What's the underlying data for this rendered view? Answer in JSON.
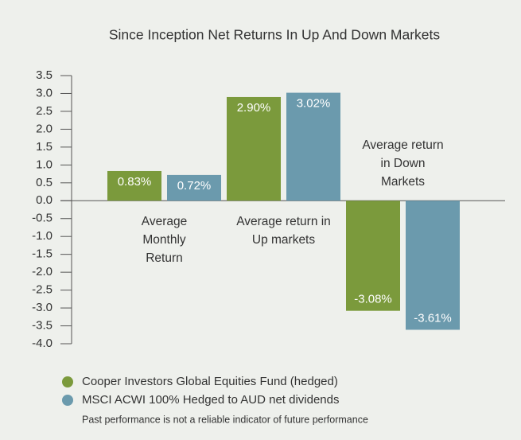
{
  "chart_data": {
    "type": "bar",
    "title": "Since Inception Net Returns In Up And Down Markets",
    "categories": [
      "Average Monthly Return",
      "Average return in Up markets",
      "Average return in Down Markets"
    ],
    "series": [
      {
        "name": "Cooper Investors Global Equities Fund (hedged)",
        "color": "#7b9a3c",
        "values": [
          0.83,
          2.9,
          -3.08
        ],
        "value_labels": [
          "0.83%",
          "2.90%",
          "-3.08%"
        ]
      },
      {
        "name": "MSCI ACWI 100% Hedged to AUD net dividends",
        "color": "#6b9aad",
        "values": [
          0.72,
          3.02,
          -3.61
        ],
        "value_labels": [
          "0.72%",
          "3.02%",
          "-3.61%"
        ]
      }
    ],
    "ylim": [
      -4.0,
      3.5
    ],
    "yticks": [
      {
        "value": 3.5,
        "label": "3.5"
      },
      {
        "value": 3.0,
        "label": "3.0"
      },
      {
        "value": 2.5,
        "label": "2.5"
      },
      {
        "value": 2.0,
        "label": "2.0"
      },
      {
        "value": 1.5,
        "label": "1.5"
      },
      {
        "value": 1.0,
        "label": "1.0"
      },
      {
        "value": 0.5,
        "label": "0.5"
      },
      {
        "value": 0.0,
        "label": "0.0"
      },
      {
        "value": -0.5,
        "label": "-0.5"
      },
      {
        "value": -1.0,
        "label": "-1.0"
      },
      {
        "value": -1.5,
        "label": "-1.5"
      },
      {
        "value": -2.0,
        "label": "-2.0"
      },
      {
        "value": -2.5,
        "label": "-2.5"
      },
      {
        "value": -3.0,
        "label": "-3.0"
      },
      {
        "value": -3.5,
        "label": "-3.5"
      },
      {
        "value": -4.0,
        "label": "-4.0"
      }
    ],
    "note": "Past performance is not a reliable indicator of future performance"
  }
}
